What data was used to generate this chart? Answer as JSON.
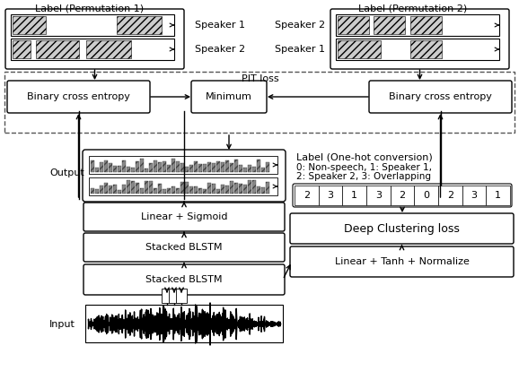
{
  "bg_color": "#ffffff",
  "perm1_title": "Label (Permutation 1)",
  "perm2_title": "Label (Permutation 2)",
  "pit_label": "PIT loss",
  "bce_label": "Binary cross entropy",
  "min_label": "Minimum",
  "output_label": "Output",
  "ls_label": "Linear + Sigmoid",
  "blstm_label": "Stacked BLSTM",
  "input_label": "Input",
  "onehot_title": "Label (One-hot conversion)",
  "onehot_line1": "0: Non-speech, 1: Speaker 1,",
  "onehot_line2": "2: Speaker 2, 3: Overlapping",
  "dc_label": "Deep Clustering loss",
  "ltn_label": "Linear + Tanh + Normalize",
  "oh_values": [
    "2",
    "3",
    "1",
    "3",
    "2",
    "0",
    "2",
    "3",
    "1"
  ],
  "spk1_label": "Speaker 1",
  "spk2_label": "Speaker 2"
}
